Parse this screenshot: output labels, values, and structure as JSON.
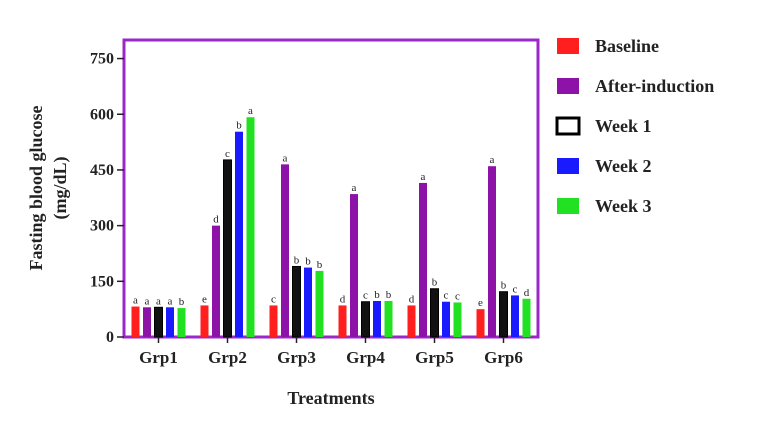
{
  "chart_data": {
    "type": "bar",
    "xlabel": "Treatments",
    "ylabel_lines": [
      "Fasting blood glucose",
      "(mg/dL)"
    ],
    "ylim": [
      0,
      800
    ],
    "yticks": [
      0,
      150,
      300,
      450,
      600,
      750
    ],
    "categories": [
      "Grp1",
      "Grp2",
      "Grp3",
      "Grp4",
      "Grp5",
      "Grp6"
    ],
    "frame_color": "#9b27c9",
    "series": [
      {
        "name": "Baseline",
        "color": "#ff1f1f",
        "values": [
          82,
          85,
          85,
          85,
          85,
          75
        ],
        "letters": [
          "a",
          "e",
          "c",
          "d",
          "d",
          "e"
        ]
      },
      {
        "name": "After-induction",
        "color": "#8c12a8",
        "values": [
          80,
          300,
          465,
          385,
          415,
          460
        ],
        "letters": [
          "a",
          "d",
          "a",
          "a",
          "a",
          "a"
        ]
      },
      {
        "name": "Week 1",
        "color": "#111111",
        "values": [
          80,
          477,
          190,
          95,
          130,
          122
        ],
        "letters": [
          "a",
          "c",
          "b",
          "c",
          "b",
          "b"
        ]
      },
      {
        "name": "Week 2",
        "color": "#1a1aff",
        "values": [
          80,
          553,
          187,
          97,
          95,
          112
        ],
        "letters": [
          "a",
          "b",
          "b",
          "b",
          "c",
          "c"
        ]
      },
      {
        "name": "Week 3",
        "color": "#22e022",
        "values": [
          78,
          592,
          178,
          97,
          93,
          103
        ],
        "letters": [
          "b",
          "a",
          "b",
          "b",
          "c",
          "d"
        ]
      }
    ]
  }
}
